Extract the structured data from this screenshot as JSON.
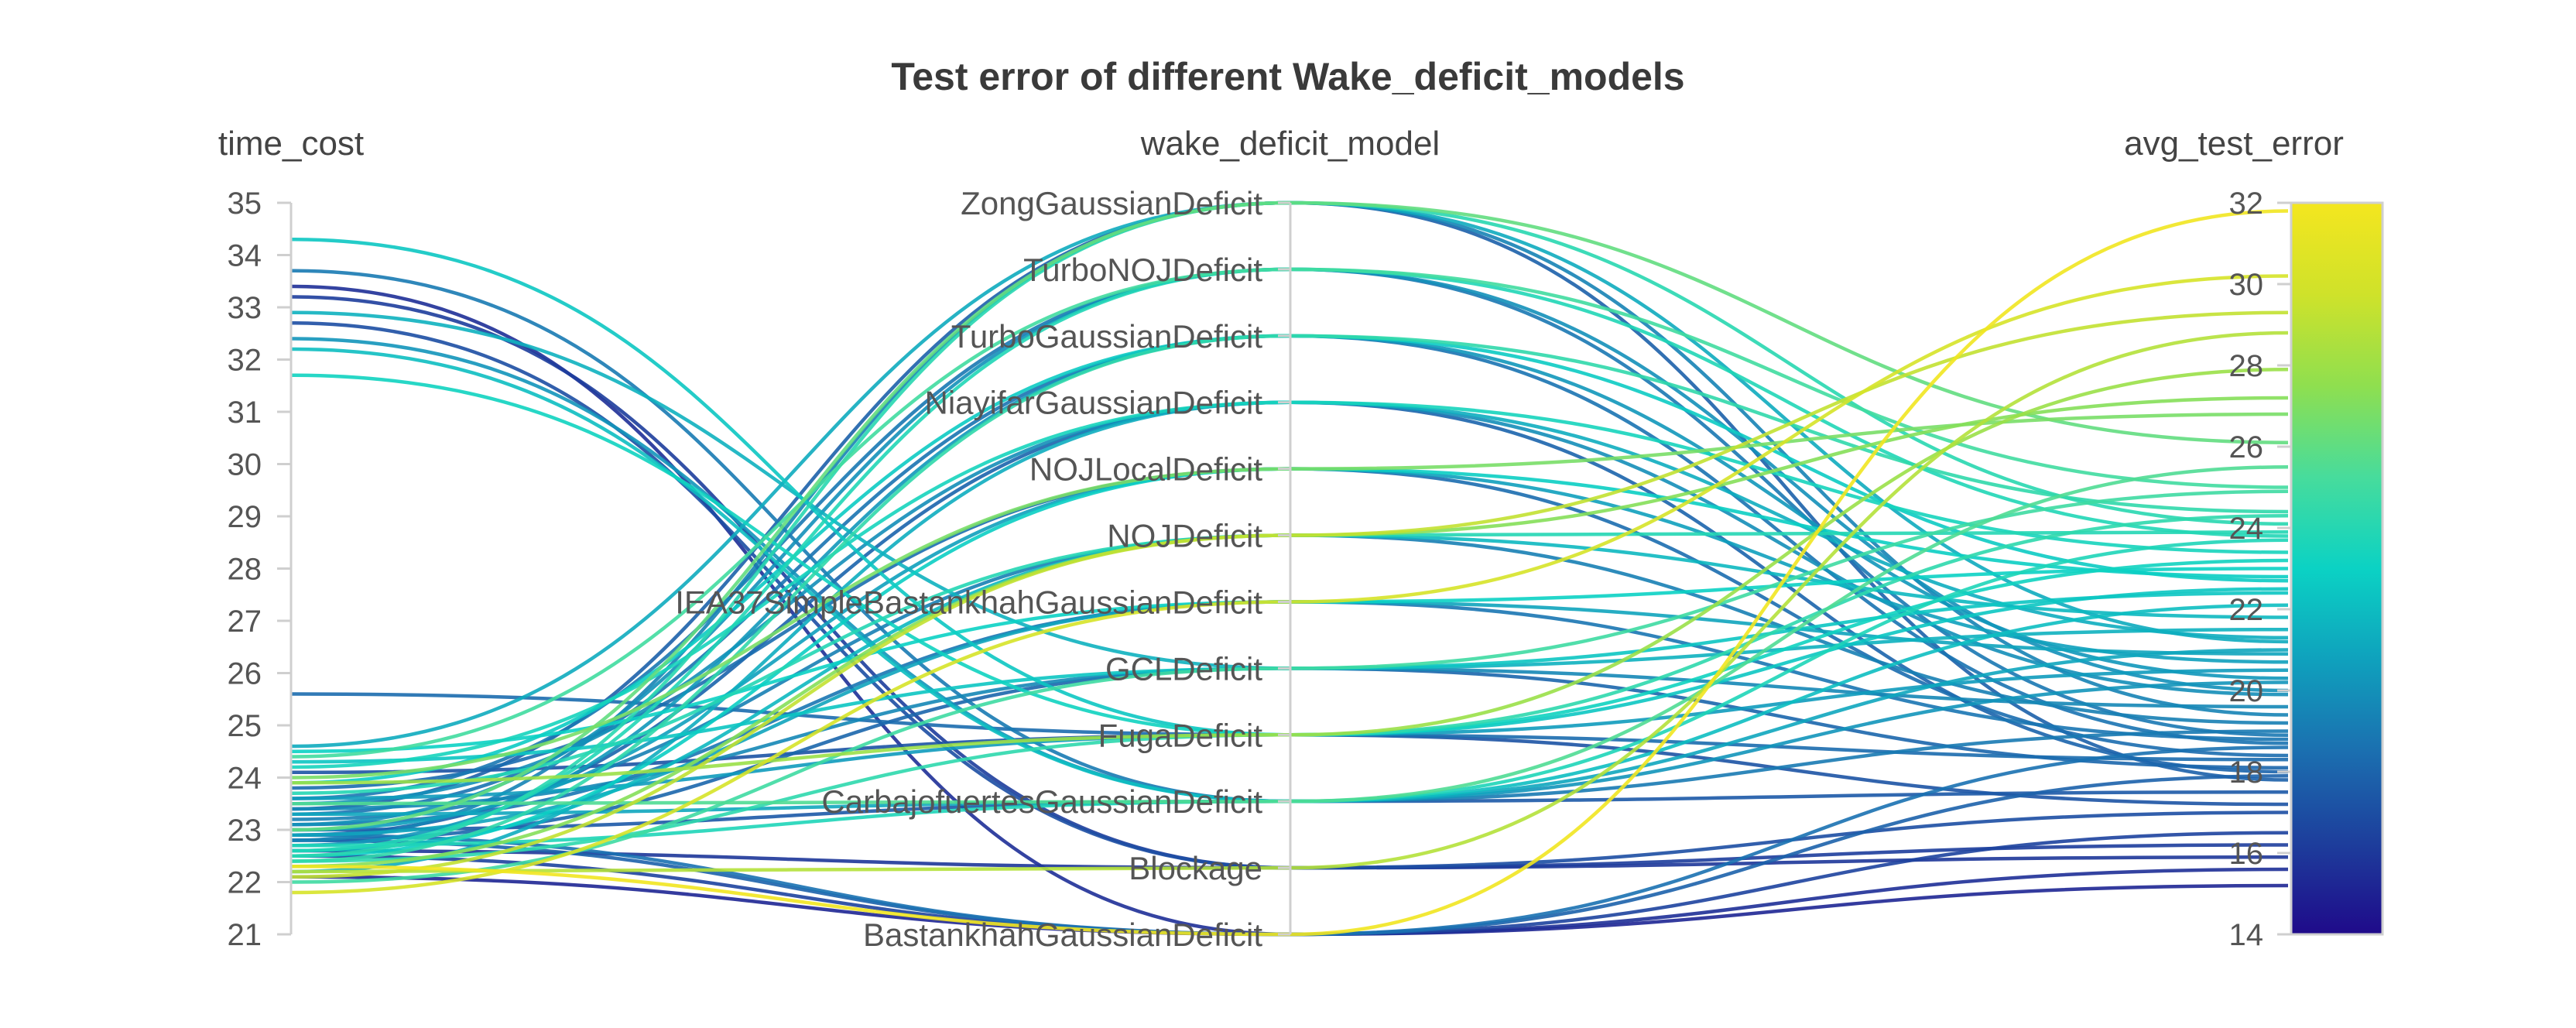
{
  "chart_data": {
    "type": "parallel_coordinates",
    "title": "Test error of different Wake_deficit_models",
    "axes": [
      {
        "name": "time_cost",
        "range": [
          21,
          35
        ],
        "ticks": [
          21,
          22,
          23,
          24,
          25,
          26,
          27,
          28,
          29,
          30,
          31,
          32,
          33,
          34,
          35
        ]
      },
      {
        "name": "wake_deficit_model",
        "categories": [
          "BastankhahGaussianDeficit",
          "Blockage",
          "CarbajofuertesGaussianDeficit",
          "FugaDeficit",
          "GCLDeficit",
          "IEA37SimpleBastankhahGaussianDeficit",
          "NOJDeficit",
          "NOJLocalDeficit",
          "NiayifarGaussianDeficit",
          "TurboGaussianDeficit",
          "TurboNOJDeficit",
          "ZongGaussianDeficit"
        ]
      },
      {
        "name": "avg_test_error",
        "range": [
          14,
          32
        ],
        "ticks": [
          14,
          16,
          18,
          20,
          22,
          24,
          26,
          28,
          30,
          32
        ]
      }
    ],
    "colorscale": {
      "axis": "avg_test_error",
      "range": [
        14,
        32
      ],
      "stops": [
        "#1f0a8a",
        "#1d3e9c",
        "#1b6fb0",
        "#0fa1bd",
        "#0bd2c4",
        "#47dc9c",
        "#8fdf4f",
        "#cfe22a",
        "#f4e61f"
      ]
    },
    "lines": [
      {
        "time_cost": 33.4,
        "model": "BastankhahGaussianDeficit",
        "error": 15.6
      },
      {
        "time_cost": 33.2,
        "model": "Blockage",
        "error": 16.2
      },
      {
        "time_cost": 32.7,
        "model": "Blockage",
        "error": 17.0
      },
      {
        "time_cost": 33.7,
        "model": "CarbajofuertesGaussianDeficit",
        "error": 19.0
      },
      {
        "time_cost": 32.4,
        "model": "CarbajofuertesGaussianDeficit",
        "error": 20.2
      },
      {
        "time_cost": 34.3,
        "model": "FugaDeficit",
        "error": 22.5
      },
      {
        "time_cost": 31.7,
        "model": "FugaDeficit",
        "error": 23.2
      },
      {
        "time_cost": 32.9,
        "model": "GCLDeficit",
        "error": 21.5
      },
      {
        "time_cost": 32.2,
        "model": "CarbajofuertesGaussianDeficit",
        "error": 22.1
      },
      {
        "time_cost": 25.6,
        "model": "FugaDeficit",
        "error": 18.3
      },
      {
        "time_cost": 22.1,
        "model": "BastankhahGaussianDeficit",
        "error": 15.2
      },
      {
        "time_cost": 22.5,
        "model": "BastankhahGaussianDeficit",
        "error": 16.5
      },
      {
        "time_cost": 22.8,
        "model": "BastankhahGaussianDeficit",
        "error": 17.9
      },
      {
        "time_cost": 22.9,
        "model": "BastankhahGaussianDeficit",
        "error": 18.6
      },
      {
        "time_cost": 22.3,
        "model": "BastankhahGaussianDeficit",
        "error": 31.8
      },
      {
        "time_cost": 22.6,
        "model": "Blockage",
        "error": 15.9
      },
      {
        "time_cost": 22.2,
        "model": "Blockage",
        "error": 28.8
      },
      {
        "time_cost": 23.0,
        "model": "CarbajofuertesGaussianDeficit",
        "error": 17.5
      },
      {
        "time_cost": 23.3,
        "model": "CarbajofuertesGaussianDeficit",
        "error": 21.0
      },
      {
        "time_cost": 22.7,
        "model": "CarbajofuertesGaussianDeficit",
        "error": 23.7
      },
      {
        "time_cost": 23.5,
        "model": "CarbajofuertesGaussianDeficit",
        "error": 25.5
      },
      {
        "time_cost": 24.1,
        "model": "FugaDeficit",
        "error": 17.2
      },
      {
        "time_cost": 23.6,
        "model": "FugaDeficit",
        "error": 20.5
      },
      {
        "time_cost": 22.4,
        "model": "FugaDeficit",
        "error": 24.3
      },
      {
        "time_cost": 23.9,
        "model": "FugaDeficit",
        "error": 27.9
      },
      {
        "time_cost": 22.8,
        "model": "GCLDeficit",
        "error": 18.1
      },
      {
        "time_cost": 23.4,
        "model": "GCLDeficit",
        "error": 19.6
      },
      {
        "time_cost": 24.3,
        "model": "GCLDeficit",
        "error": 22.4
      },
      {
        "time_cost": 22.0,
        "model": "GCLDeficit",
        "error": 24.9
      },
      {
        "time_cost": 23.1,
        "model": "IEA37SimpleBastankhahGaussianDeficit",
        "error": 18.8
      },
      {
        "time_cost": 22.9,
        "model": "IEA37SimpleBastankhahGaussianDeficit",
        "error": 20.9
      },
      {
        "time_cost": 24.5,
        "model": "IEA37SimpleBastankhahGaussianDeficit",
        "error": 23.0
      },
      {
        "time_cost": 21.8,
        "model": "IEA37SimpleBastankhahGaussianDeficit",
        "error": 30.2
      },
      {
        "time_cost": 23.2,
        "model": "NOJDeficit",
        "error": 19.2
      },
      {
        "time_cost": 22.6,
        "model": "NOJDeficit",
        "error": 21.8
      },
      {
        "time_cost": 23.7,
        "model": "NOJDeficit",
        "error": 23.9
      },
      {
        "time_cost": 22.1,
        "model": "NOJDeficit",
        "error": 29.3
      },
      {
        "time_cost": 22.3,
        "model": "NOJDeficit",
        "error": 27.2
      },
      {
        "time_cost": 23.8,
        "model": "NOJLocalDeficit",
        "error": 18.4
      },
      {
        "time_cost": 23.0,
        "model": "NOJLocalDeficit",
        "error": 20.7
      },
      {
        "time_cost": 22.5,
        "model": "NOJLocalDeficit",
        "error": 22.8
      },
      {
        "time_cost": 24.0,
        "model": "NOJLocalDeficit",
        "error": 26.8
      },
      {
        "time_cost": 22.9,
        "model": "NiayifarGaussianDeficit",
        "error": 18.0
      },
      {
        "time_cost": 23.5,
        "model": "NiayifarGaussianDeficit",
        "error": 19.9
      },
      {
        "time_cost": 22.2,
        "model": "NiayifarGaussianDeficit",
        "error": 21.3
      },
      {
        "time_cost": 24.2,
        "model": "NiayifarGaussianDeficit",
        "error": 23.4
      },
      {
        "time_cost": 23.3,
        "model": "TurboGaussianDeficit",
        "error": 18.7
      },
      {
        "time_cost": 22.7,
        "model": "TurboGaussianDeficit",
        "error": 20.3
      },
      {
        "time_cost": 23.9,
        "model": "TurboGaussianDeficit",
        "error": 22.7
      },
      {
        "time_cost": 22.4,
        "model": "TurboGaussianDeficit",
        "error": 24.4
      },
      {
        "time_cost": 23.6,
        "model": "TurboNOJDeficit",
        "error": 18.9
      },
      {
        "time_cost": 23.1,
        "model": "TurboNOJDeficit",
        "error": 20.0
      },
      {
        "time_cost": 22.6,
        "model": "TurboNOJDeficit",
        "error": 23.8
      },
      {
        "time_cost": 24.4,
        "model": "TurboNOJDeficit",
        "error": 25.0
      },
      {
        "time_cost": 23.4,
        "model": "ZongGaussianDeficit",
        "error": 17.8
      },
      {
        "time_cost": 22.8,
        "model": "ZongGaussianDeficit",
        "error": 19.4
      },
      {
        "time_cost": 24.6,
        "model": "ZongGaussianDeficit",
        "error": 21.2
      },
      {
        "time_cost": 22.5,
        "model": "ZongGaussianDeficit",
        "error": 24.1
      },
      {
        "time_cost": 23.0,
        "model": "ZongGaussianDeficit",
        "error": 26.1
      }
    ]
  }
}
